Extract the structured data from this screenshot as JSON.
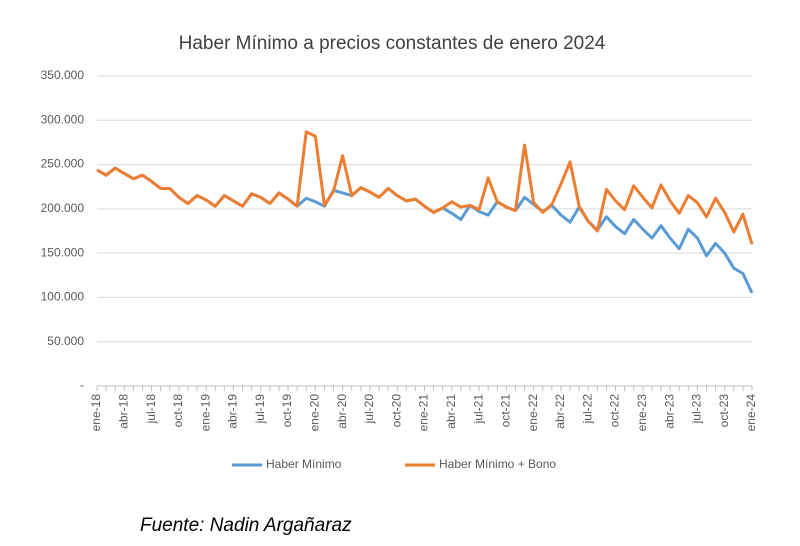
{
  "chart_data": {
    "type": "line",
    "title": "Haber Mínimo a precios constantes de enero 2024",
    "source": "Fuente: Nadin Argañaraz",
    "categories": [
      "ene-18",
      null,
      null,
      "abr-18",
      null,
      null,
      "jul-18",
      null,
      null,
      "oct-18",
      null,
      null,
      "ene-19",
      null,
      null,
      "abr-19",
      null,
      null,
      "jul-19",
      null,
      null,
      "oct-19",
      null,
      null,
      "ene-20",
      null,
      null,
      "abr-20",
      null,
      null,
      "jul-20",
      null,
      null,
      "oct-20",
      null,
      null,
      "ene-21",
      null,
      null,
      "abr-21",
      null,
      null,
      "jul-21",
      null,
      null,
      "oct-21",
      null,
      null,
      "ene-22",
      null,
      null,
      "abr-22",
      null,
      null,
      "jul-22",
      null,
      null,
      "oct-22",
      null,
      null,
      "ene-23",
      null,
      null,
      "abr-23",
      null,
      null,
      "jul-23",
      null,
      null,
      "oct-23",
      null,
      null,
      "ene-24"
    ],
    "series": [
      {
        "name": "Haber Mínimo",
        "color": "#5b9bd5",
        "values": [
          244000,
          238000,
          246000,
          240000,
          234000,
          238000,
          231000,
          223000,
          223000,
          213000,
          206000,
          215000,
          210000,
          203000,
          215000,
          209000,
          203000,
          217000,
          213000,
          206000,
          218000,
          211000,
          203000,
          212000,
          208000,
          203000,
          221000,
          218000,
          215000,
          224000,
          219000,
          213000,
          223000,
          215000,
          209000,
          211000,
          203000,
          196000,
          201000,
          195000,
          188000,
          204000,
          197000,
          193000,
          208000,
          202000,
          198000,
          213000,
          205000,
          197000,
          204000,
          193000,
          185000,
          202000,
          186000,
          176000,
          191000,
          180000,
          172000,
          188000,
          177000,
          167000,
          181000,
          167000,
          155000,
          177000,
          167000,
          147000,
          161000,
          150000,
          133000,
          127000,
          105000
        ]
      },
      {
        "name": "Haber Mínimo + Bono",
        "color": "#ed7d31",
        "values": [
          244000,
          238000,
          246000,
          240000,
          234000,
          238000,
          231000,
          223000,
          223000,
          213000,
          206000,
          215000,
          210000,
          203000,
          215000,
          209000,
          203000,
          217000,
          213000,
          206000,
          218000,
          211000,
          203000,
          287000,
          282000,
          204000,
          220000,
          260000,
          215000,
          224000,
          219000,
          213000,
          223000,
          215000,
          209000,
          211000,
          203000,
          196000,
          201000,
          208000,
          202000,
          204000,
          199000,
          235000,
          208000,
          202000,
          198000,
          272000,
          207000,
          196000,
          205000,
          228000,
          253000,
          203000,
          186000,
          175000,
          222000,
          209000,
          199000,
          226000,
          213000,
          201000,
          227000,
          209000,
          195000,
          215000,
          207000,
          191000,
          212000,
          196000,
          174000,
          194000,
          160000
        ]
      }
    ],
    "ylim": [
      0,
      350000
    ],
    "yticks": [
      {
        "value": 0,
        "label": "-"
      },
      {
        "value": 50000,
        "label": "50.000"
      },
      {
        "value": 100000,
        "label": "100.000"
      },
      {
        "value": 150000,
        "label": "150.000"
      },
      {
        "value": 200000,
        "label": "200.000"
      },
      {
        "value": 250000,
        "label": "250.000"
      },
      {
        "value": 300000,
        "label": "300.000"
      },
      {
        "value": 350000,
        "label": "350.000"
      }
    ],
    "grid": true,
    "legend": "bottom"
  }
}
